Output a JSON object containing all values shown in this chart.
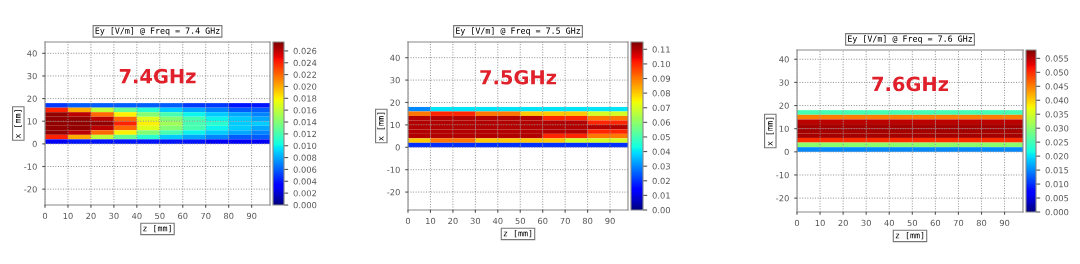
{
  "chart_data": [
    {
      "type": "heatmap",
      "title": "Ey [V/m] @ Freq = 7.4 GHz",
      "xlabel": "z [mm]",
      "ylabel": "x [mm]",
      "annotations": [
        "7.4GHz"
      ],
      "x": [
        5,
        15,
        25,
        35,
        45,
        55,
        65,
        75,
        85,
        95
      ],
      "y": [
        17,
        15,
        13,
        11,
        9,
        7,
        5,
        3,
        1
      ],
      "cells": [
        [
          0.005,
          0.006,
          0.006,
          0.006,
          0.006,
          0.006,
          0.005,
          0.005,
          0.004,
          0.004
        ],
        [
          0.024,
          0.02,
          0.016,
          0.013,
          0.011,
          0.009,
          0.008,
          0.007,
          0.006,
          0.006
        ],
        [
          0.027,
          0.026,
          0.022,
          0.018,
          0.014,
          0.012,
          0.01,
          0.009,
          0.008,
          0.007
        ],
        [
          0.027,
          0.027,
          0.026,
          0.022,
          0.017,
          0.014,
          0.012,
          0.01,
          0.009,
          0.008
        ],
        [
          0.027,
          0.027,
          0.027,
          0.024,
          0.018,
          0.015,
          0.012,
          0.011,
          0.009,
          0.009
        ],
        [
          0.027,
          0.027,
          0.026,
          0.022,
          0.017,
          0.014,
          0.012,
          0.01,
          0.009,
          0.008
        ],
        [
          0.027,
          0.026,
          0.022,
          0.018,
          0.014,
          0.012,
          0.01,
          0.009,
          0.008,
          0.007
        ],
        [
          0.024,
          0.02,
          0.016,
          0.013,
          0.011,
          0.009,
          0.008,
          0.007,
          0.006,
          0.006
        ],
        [
          0.003,
          0.004,
          0.004,
          0.004,
          0.004,
          0.004,
          0.004,
          0.003,
          0.003,
          0.003
        ]
      ],
      "clim": [
        0,
        0.0275
      ],
      "cticks": [
        {
          "value": 0,
          "label": "0.000"
        },
        {
          "value": 0.002,
          "label": "0.002"
        },
        {
          "value": 0.004,
          "label": "0.004"
        },
        {
          "value": 0.006,
          "label": "0.006"
        },
        {
          "value": 0.008,
          "label": "0.008"
        },
        {
          "value": 0.01,
          "label": "0.010"
        },
        {
          "value": 0.012,
          "label": "0.012"
        },
        {
          "value": 0.014,
          "label": "0.014"
        },
        {
          "value": 0.016,
          "label": "0.016"
        },
        {
          "value": 0.018,
          "label": "0.018"
        },
        {
          "value": 0.02,
          "label": "0.020"
        },
        {
          "value": 0.022,
          "label": "0.022"
        },
        {
          "value": 0.024,
          "label": "0.024"
        },
        {
          "value": 0.026,
          "label": "0.026"
        }
      ],
      "xlim": [
        0,
        98
      ],
      "ylim": [
        -27,
        45
      ],
      "xticks": [
        0,
        10,
        20,
        30,
        40,
        50,
        60,
        70,
        80,
        90
      ],
      "yticks": [
        -20,
        -10,
        0,
        10,
        20,
        30,
        40
      ],
      "grid": true
    },
    {
      "type": "heatmap",
      "title": "Ey [V/m] @ Freq = 7.5 GHz",
      "xlabel": "z [mm]",
      "ylabel": "x [mm]",
      "annotations": [
        "7.5GHz"
      ],
      "x": [
        5,
        15,
        25,
        35,
        45,
        55,
        65,
        75,
        85,
        95
      ],
      "y": [
        17,
        15,
        13,
        11,
        9,
        7,
        5,
        3,
        1
      ],
      "cells": [
        [
          0.03,
          0.04,
          0.04,
          0.04,
          0.04,
          0.04,
          0.04,
          0.04,
          0.04,
          0.04
        ],
        [
          0.09,
          0.1,
          0.1,
          0.09,
          0.09,
          0.08,
          0.08,
          0.08,
          0.07,
          0.07
        ],
        [
          0.11,
          0.11,
          0.11,
          0.11,
          0.11,
          0.11,
          0.1,
          0.1,
          0.09,
          0.09
        ],
        [
          0.11,
          0.11,
          0.11,
          0.11,
          0.11,
          0.11,
          0.11,
          0.11,
          0.1,
          0.1
        ],
        [
          0.11,
          0.11,
          0.11,
          0.11,
          0.11,
          0.11,
          0.11,
          0.11,
          0.11,
          0.11
        ],
        [
          0.11,
          0.11,
          0.11,
          0.11,
          0.11,
          0.11,
          0.11,
          0.11,
          0.1,
          0.1
        ],
        [
          0.11,
          0.11,
          0.11,
          0.11,
          0.11,
          0.11,
          0.1,
          0.1,
          0.09,
          0.09
        ],
        [
          0.08,
          0.09,
          0.09,
          0.08,
          0.08,
          0.08,
          0.08,
          0.07,
          0.07,
          0.07
        ],
        [
          0.02,
          0.02,
          0.02,
          0.02,
          0.02,
          0.02,
          0.02,
          0.02,
          0.02,
          0.02
        ]
      ],
      "clim": [
        0,
        0.115
      ],
      "cticks": [
        {
          "value": 0,
          "label": "0.00"
        },
        {
          "value": 0.01,
          "label": "0.01"
        },
        {
          "value": 0.02,
          "label": "0.02"
        },
        {
          "value": 0.03,
          "label": "0.03"
        },
        {
          "value": 0.04,
          "label": "0.04"
        },
        {
          "value": 0.05,
          "label": "0.05"
        },
        {
          "value": 0.06,
          "label": "0.06"
        },
        {
          "value": 0.07,
          "label": "0.07"
        },
        {
          "value": 0.08,
          "label": "0.08"
        },
        {
          "value": 0.09,
          "label": "0.09"
        },
        {
          "value": 0.1,
          "label": "0.10"
        },
        {
          "value": 0.11,
          "label": "0.11"
        }
      ],
      "xlim": [
        0,
        98
      ],
      "ylim": [
        -28,
        47
      ],
      "xticks": [
        0,
        10,
        20,
        30,
        40,
        50,
        60,
        70,
        80,
        90
      ],
      "yticks": [
        -20,
        -10,
        0,
        10,
        20,
        30,
        40
      ],
      "grid": true
    },
    {
      "type": "heatmap",
      "title": "Ey [V/m] @ Freq = 7.6 GHz",
      "xlabel": "z [mm]",
      "ylabel": "x [mm]",
      "annotations": [
        "7.6GHz"
      ],
      "x": [
        5,
        15,
        25,
        35,
        45,
        55,
        65,
        75,
        85,
        95
      ],
      "y": [
        17,
        15,
        13,
        11,
        9,
        7,
        5,
        3,
        1
      ],
      "cells": [
        [
          0.025,
          0.025,
          0.025,
          0.025,
          0.025,
          0.025,
          0.025,
          0.025,
          0.025,
          0.025
        ],
        [
          0.045,
          0.045,
          0.045,
          0.045,
          0.045,
          0.045,
          0.045,
          0.045,
          0.045,
          0.045
        ],
        [
          0.055,
          0.055,
          0.055,
          0.055,
          0.055,
          0.055,
          0.055,
          0.055,
          0.055,
          0.055
        ],
        [
          0.056,
          0.056,
          0.056,
          0.056,
          0.056,
          0.056,
          0.056,
          0.056,
          0.056,
          0.056
        ],
        [
          0.056,
          0.056,
          0.056,
          0.056,
          0.056,
          0.056,
          0.056,
          0.056,
          0.056,
          0.056
        ],
        [
          0.056,
          0.056,
          0.056,
          0.056,
          0.056,
          0.056,
          0.056,
          0.056,
          0.056,
          0.056
        ],
        [
          0.05,
          0.05,
          0.05,
          0.05,
          0.05,
          0.05,
          0.05,
          0.05,
          0.05,
          0.05
        ],
        [
          0.03,
          0.03,
          0.03,
          0.03,
          0.03,
          0.03,
          0.03,
          0.03,
          0.03,
          0.03
        ],
        [
          0.015,
          0.015,
          0.015,
          0.015,
          0.015,
          0.015,
          0.015,
          0.015,
          0.015,
          0.015
        ]
      ],
      "clim": [
        0,
        0.058
      ],
      "cticks": [
        {
          "value": 0,
          "label": "0.000"
        },
        {
          "value": 0.005,
          "label": "0.005"
        },
        {
          "value": 0.01,
          "label": "0.010"
        },
        {
          "value": 0.015,
          "label": "0.015"
        },
        {
          "value": 0.02,
          "label": "0.020"
        },
        {
          "value": 0.025,
          "label": "0.025"
        },
        {
          "value": 0.03,
          "label": "0.030"
        },
        {
          "value": 0.035,
          "label": "0.035"
        },
        {
          "value": 0.04,
          "label": "0.040"
        },
        {
          "value": 0.045,
          "label": "0.045"
        },
        {
          "value": 0.05,
          "label": "0.050"
        },
        {
          "value": 0.055,
          "label": "0.055"
        }
      ],
      "xlim": [
        0,
        98
      ],
      "ylim": [
        -26,
        44
      ],
      "xticks": [
        0,
        10,
        20,
        30,
        40,
        50,
        60,
        70,
        80,
        90
      ],
      "yticks": [
        -20,
        -10,
        0,
        10,
        20,
        30,
        40
      ],
      "grid": true
    }
  ]
}
